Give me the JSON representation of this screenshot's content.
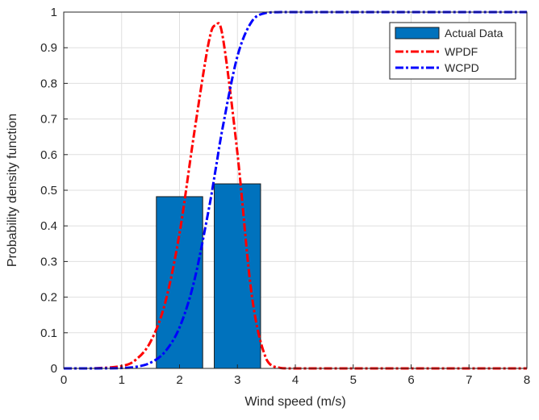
{
  "chart_data": {
    "type": "bar+line",
    "title": "",
    "xlabel": "Wind speed (m/s)",
    "ylabel": "Probability density function",
    "xlim": [
      0,
      8
    ],
    "ylim": [
      0,
      1
    ],
    "xticks": [
      0,
      1,
      2,
      3,
      4,
      5,
      6,
      7,
      8
    ],
    "yticks": [
      0,
      0.1,
      0.2,
      0.3,
      0.4,
      0.5,
      0.6,
      0.7,
      0.8,
      0.9,
      1
    ],
    "grid": true,
    "legend_position": "top-right",
    "bars": {
      "name": "Actual Data",
      "color": "#0072BD",
      "categories": [
        2,
        3
      ],
      "values": [
        0.482,
        0.518
      ],
      "bar_width": 0.8
    },
    "series": [
      {
        "name": "WPDF",
        "color": "#FF0000",
        "style": "dash-dot",
        "x": [
          0,
          0.5,
          1,
          1.25,
          1.5,
          1.75,
          2,
          2.25,
          2.5,
          2.625,
          2.75,
          3,
          3.25,
          3.5,
          3.75,
          4,
          5,
          6,
          7,
          8
        ],
        "y": [
          0,
          0.0001,
          0.0067,
          0.025,
          0.075,
          0.183,
          0.379,
          0.657,
          0.912,
          0.963,
          0.927,
          0.604,
          0.203,
          0.026,
          0.001,
          0,
          0,
          0,
          0,
          0
        ]
      },
      {
        "name": "WCPD",
        "color": "#0000FF",
        "style": "dash-dot",
        "x": [
          0,
          0.5,
          1,
          1.25,
          1.5,
          1.75,
          2,
          2.25,
          2.5,
          2.625,
          2.75,
          3,
          3.25,
          3.5,
          3.75,
          4,
          5,
          6,
          7,
          8
        ],
        "y": [
          0,
          0,
          0.001,
          0.0045,
          0.016,
          0.047,
          0.115,
          0.243,
          0.442,
          0.56,
          0.68,
          0.876,
          0.974,
          0.998,
          1,
          1,
          1,
          1,
          1,
          1
        ]
      }
    ]
  }
}
